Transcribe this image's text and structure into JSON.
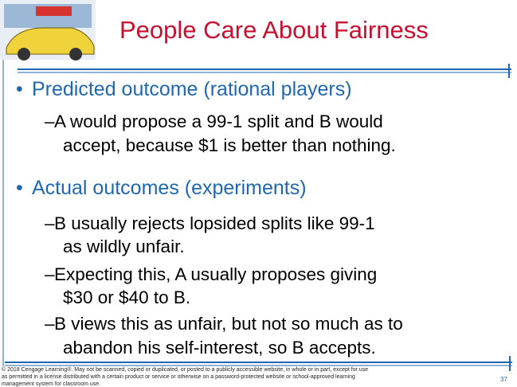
{
  "header": {
    "title": "People Care About Fairness"
  },
  "bullets": [
    {
      "text": "Predicted outcome (rational players)",
      "items": [
        [
          "A would propose a 99-1 split and B would",
          "accept, because $1 is better than nothing."
        ]
      ]
    },
    {
      "text": "Actual outcomes (experiments)",
      "items": [
        [
          "B usually rejects lopsided splits like 99-1",
          "as wildly unfair."
        ],
        [
          "Expecting this, A usually proposes giving",
          "$30 or $40 to B."
        ],
        [
          "B views this as unfair, but not so much as to",
          "abandon his self-interest, so B accepts."
        ]
      ]
    }
  ],
  "footer": {
    "lines": [
      "© 2018 Cengage Learning®. May not be scanned, copied or duplicated, or posted to a publicly accessible website, in whole or in part, except for use",
      "as permitted in a license distributed with a certain product or service or otherwise on a password-protected website or school-approved learning",
      "management system for classroom use."
    ],
    "page": "37"
  }
}
